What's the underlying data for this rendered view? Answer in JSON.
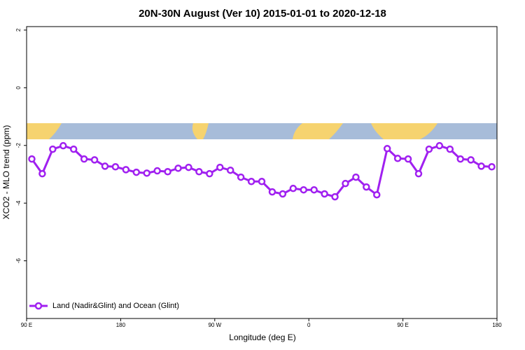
{
  "chart_data": {
    "type": "line",
    "title": "20N-30N August (Ver 10)   2015-01-01 to 2020-12-18",
    "x_label": "Longitude (deg E)",
    "y_label": "XCO2 - MLO trend (ppm)",
    "x": [
      95,
      105,
      115,
      125,
      135,
      145,
      155,
      165,
      175,
      185,
      195,
      205,
      215,
      225,
      235,
      245,
      255,
      265,
      275,
      285,
      295,
      305,
      315,
      325,
      335,
      345,
      355,
      365,
      375,
      385,
      395,
      405,
      415,
      425,
      435,
      445,
      455,
      465,
      475,
      485,
      495,
      505,
      515,
      525,
      535
    ],
    "series": [
      {
        "name": "Land (Nadir&Glint) and Ocean (Glint)",
        "color": "#a020f0",
        "values": [
          -2.47,
          -2.98,
          -2.13,
          -2.01,
          -2.13,
          -2.47,
          -2.5,
          -2.72,
          -2.74,
          -2.84,
          -2.93,
          -2.96,
          -2.88,
          -2.91,
          -2.79,
          -2.76,
          -2.91,
          -2.98,
          -2.76,
          -2.86,
          -3.1,
          -3.25,
          -3.25,
          -3.61,
          -3.68,
          -3.49,
          -3.54,
          -3.54,
          -3.68,
          -3.78,
          -3.32,
          -3.1,
          -3.44,
          -3.71,
          -2.11,
          -2.45,
          -2.47,
          -2.98,
          -2.13,
          -2.01,
          -2.13,
          -2.47,
          -2.5,
          -2.72,
          -2.74
        ]
      }
    ],
    "xlim": [
      90,
      540
    ],
    "xticks": [
      {
        "value": 90,
        "label": "90 E"
      },
      180,
      {
        "value": 270,
        "label": "90 W"
      },
      {
        "value": 360,
        "label": "0"
      },
      {
        "value": 450,
        "label": "90 E"
      },
      {
        "value": 540,
        "label": "180"
      }
    ],
    "ylim": [
      -8,
      2.12
    ],
    "yticks": [
      2,
      0,
      -2,
      -4,
      -6
    ],
    "legend": "bottom-left"
  }
}
